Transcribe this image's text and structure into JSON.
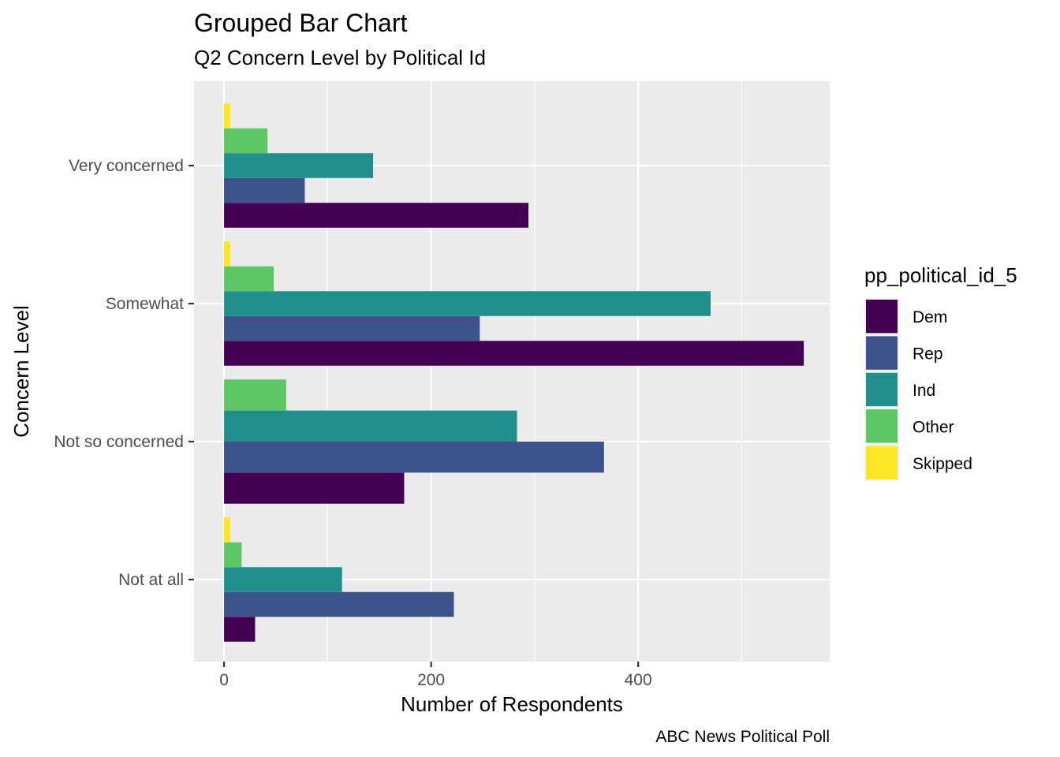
{
  "chart_data": {
    "type": "bar",
    "orientation": "horizontal",
    "title": "Grouped Bar Chart",
    "subtitle": "Q2 Concern Level by Political Id",
    "xlabel": "Number of Respondents",
    "ylabel": "Concern Level",
    "caption": "ABC News Political Poll",
    "categories": [
      "Very concerned",
      "Somewhat",
      "Not so concerned",
      "Not at all"
    ],
    "xlim": [
      -29,
      585
    ],
    "x_ticks": [
      0,
      200,
      400
    ],
    "grid": true,
    "legend": {
      "title": "pp_political_id_5",
      "position": "right"
    },
    "series": [
      {
        "name": "Dem",
        "color": "#440154",
        "values": [
          294,
          560,
          174,
          30
        ]
      },
      {
        "name": "Rep",
        "color": "#3B528B",
        "values": [
          78,
          247,
          367,
          222
        ]
      },
      {
        "name": "Ind",
        "color": "#21908C",
        "values": [
          144,
          470,
          283,
          114
        ]
      },
      {
        "name": "Other",
        "color": "#5DC863",
        "values": [
          42,
          48,
          60,
          17
        ]
      },
      {
        "name": "Skipped",
        "color": "#FDE725",
        "values": [
          6,
          6,
          null,
          6
        ]
      }
    ]
  }
}
